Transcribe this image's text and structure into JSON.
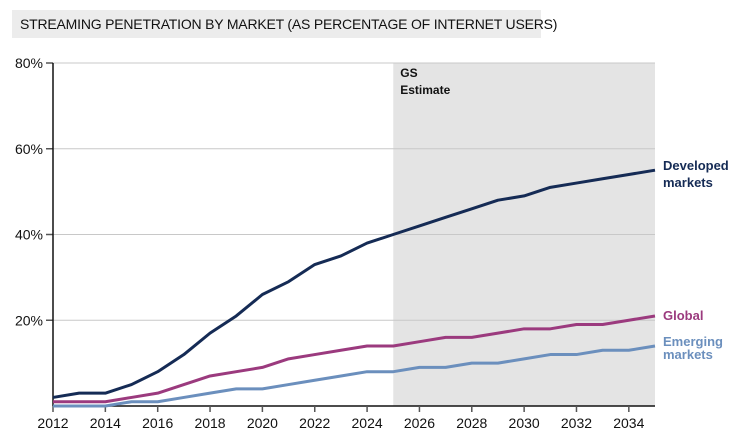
{
  "chart_data": {
    "type": "line",
    "title": "STREAMING PENETRATION BY MARKET (AS PERCENTAGE OF INTERNET USERS)",
    "xlabel": "",
    "ylabel": "",
    "x": [
      2012,
      2013,
      2014,
      2015,
      2016,
      2017,
      2018,
      2019,
      2020,
      2021,
      2022,
      2023,
      2024,
      2025,
      2026,
      2027,
      2028,
      2029,
      2030,
      2031,
      2032,
      2033,
      2034,
      2035
    ],
    "xlim": [
      2012,
      2035
    ],
    "ylim": [
      0,
      80
    ],
    "x_ticks": [
      2012,
      2014,
      2016,
      2018,
      2020,
      2022,
      2024,
      2026,
      2028,
      2030,
      2032,
      2034
    ],
    "x_tick_labels": [
      "2012",
      "2014",
      "2016",
      "2018",
      "2020",
      "2022",
      "2024",
      "2026",
      "2028",
      "2030",
      "2032",
      "2034"
    ],
    "y_ticks": [
      20,
      40,
      60,
      80
    ],
    "y_tick_labels": [
      "20%",
      "40%",
      "60%",
      "80%"
    ],
    "grid": "horizontal",
    "shaded_region": {
      "from": 2025,
      "to": 2035,
      "label_line1": "GS",
      "label_line2": "Estimate",
      "color": "#e4e4e4"
    },
    "series": [
      {
        "name": "Developed markets",
        "label_lines": [
          "Developed",
          "markets"
        ],
        "color": "#152b55",
        "values": [
          2,
          3,
          3,
          5,
          8,
          12,
          17,
          21,
          26,
          29,
          33,
          35,
          38,
          40,
          42,
          44,
          46,
          48,
          49,
          51,
          52,
          53,
          54,
          55
        ]
      },
      {
        "name": "Global",
        "label_lines": [
          "Global"
        ],
        "color": "#9b3a7e",
        "values": [
          1,
          1,
          1,
          2,
          3,
          5,
          7,
          8,
          9,
          11,
          12,
          13,
          14,
          14,
          15,
          16,
          16,
          17,
          18,
          18,
          19,
          19,
          20,
          21
        ]
      },
      {
        "name": "Emerging markets",
        "label_lines": [
          "Emerging",
          "markets"
        ],
        "color": "#6b8fbd",
        "values": [
          0,
          0,
          0,
          1,
          1,
          2,
          3,
          4,
          4,
          5,
          6,
          7,
          8,
          8,
          9,
          9,
          10,
          10,
          11,
          12,
          12,
          13,
          13,
          14
        ]
      }
    ]
  }
}
